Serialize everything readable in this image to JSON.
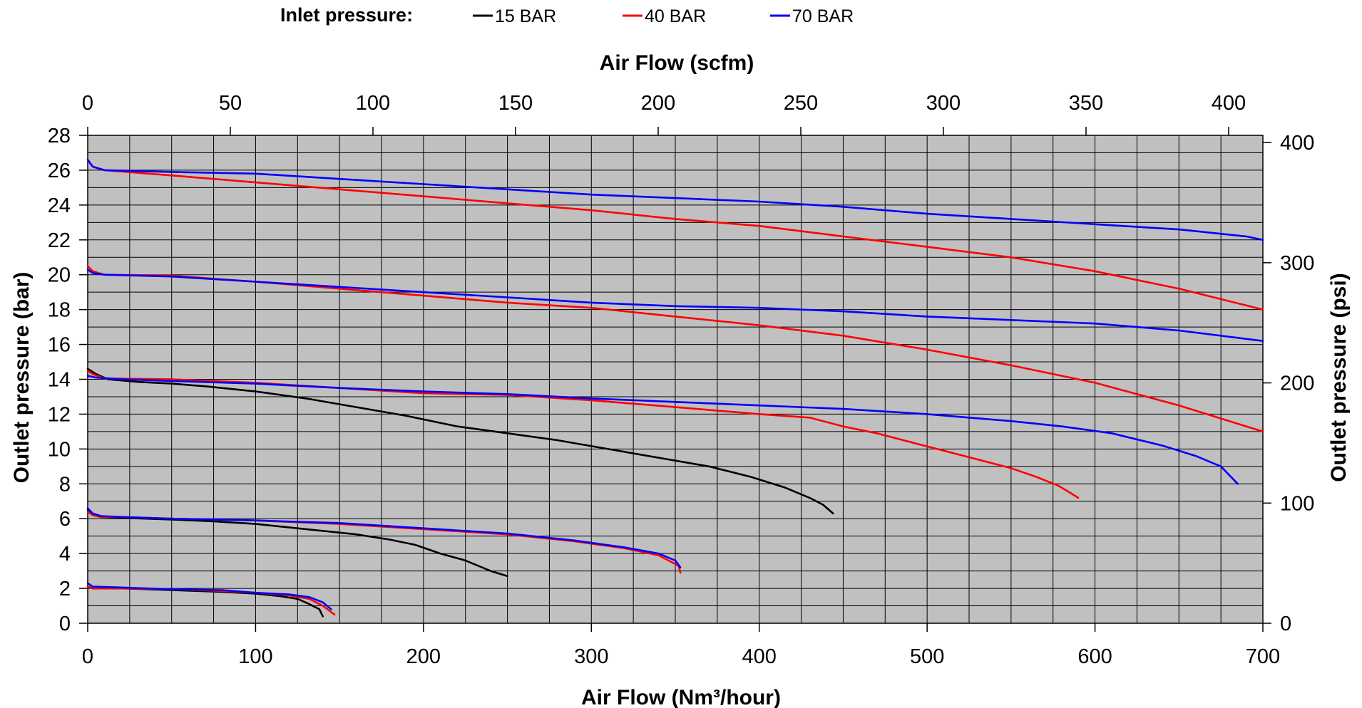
{
  "chart_data": {
    "type": "line",
    "legend": {
      "title": "Inlet pressure:",
      "placement": "top"
    },
    "x_bottom": {
      "label": "Air Flow (Nm³/hour)",
      "range": [
        0,
        700
      ],
      "ticks": [
        0,
        100,
        200,
        300,
        400,
        500,
        600,
        700
      ]
    },
    "x_top": {
      "label": "Air Flow (scfm)",
      "range": [
        0,
        412
      ],
      "ticks": [
        0,
        50,
        100,
        150,
        200,
        250,
        300,
        350,
        400
      ]
    },
    "y_left": {
      "label": "Outlet pressure (bar)",
      "range": [
        0,
        28
      ],
      "ticks": [
        0,
        2,
        4,
        6,
        8,
        10,
        12,
        14,
        16,
        18,
        20,
        22,
        24,
        26,
        28
      ]
    },
    "y_right": {
      "label": "Outlet pressure (psi)",
      "range": [
        0,
        406
      ],
      "ticks": [
        0,
        100,
        200,
        300,
        400
      ]
    },
    "grid": true,
    "plot_background": "#c0c0c0",
    "series": [
      {
        "name": "15 BAR",
        "color": "#000000",
        "curves": [
          [
            [
              0,
              2.1
            ],
            [
              3,
              2.0
            ],
            [
              20,
              2.0
            ],
            [
              50,
              1.9
            ],
            [
              80,
              1.8
            ],
            [
              100,
              1.7
            ],
            [
              115,
              1.55
            ],
            [
              125,
              1.4
            ],
            [
              132,
              1.1
            ],
            [
              138,
              0.8
            ],
            [
              140,
              0.4
            ]
          ],
          [
            [
              0,
              6.5
            ],
            [
              3,
              6.2
            ],
            [
              8,
              6.1
            ],
            [
              20,
              6.05
            ],
            [
              50,
              5.95
            ],
            [
              75,
              5.85
            ],
            [
              100,
              5.7
            ],
            [
              130,
              5.4
            ],
            [
              160,
              5.1
            ],
            [
              180,
              4.8
            ],
            [
              195,
              4.5
            ],
            [
              210,
              4.0
            ],
            [
              225,
              3.6
            ],
            [
              240,
              3.0
            ],
            [
              250,
              2.7
            ]
          ],
          [
            [
              0,
              14.6
            ],
            [
              5,
              14.3
            ],
            [
              12,
              14.0
            ],
            [
              30,
              13.85
            ],
            [
              50,
              13.75
            ],
            [
              70,
              13.6
            ],
            [
              100,
              13.3
            ],
            [
              130,
              12.9
            ],
            [
              160,
              12.4
            ],
            [
              190,
              11.9
            ],
            [
              220,
              11.3
            ],
            [
              250,
              10.9
            ],
            [
              280,
              10.5
            ],
            [
              310,
              10.0
            ],
            [
              340,
              9.5
            ],
            [
              370,
              9.0
            ],
            [
              395,
              8.4
            ],
            [
              415,
              7.8
            ],
            [
              430,
              7.2
            ],
            [
              438,
              6.8
            ],
            [
              444,
              6.3
            ]
          ]
        ]
      },
      {
        "name": "40 BAR",
        "color": "#ff0000",
        "curves": [
          [
            [
              0,
              2.1
            ],
            [
              3,
              2.0
            ],
            [
              20,
              2.0
            ],
            [
              50,
              1.95
            ],
            [
              80,
              1.85
            ],
            [
              100,
              1.75
            ],
            [
              120,
              1.6
            ],
            [
              132,
              1.4
            ],
            [
              140,
              1.0
            ],
            [
              147,
              0.5
            ]
          ],
          [
            [
              0,
              6.4
            ],
            [
              3,
              6.2
            ],
            [
              8,
              6.1
            ],
            [
              20,
              6.1
            ],
            [
              50,
              6.0
            ],
            [
              100,
              5.9
            ],
            [
              150,
              5.7
            ],
            [
              200,
              5.4
            ],
            [
              250,
              5.1
            ],
            [
              290,
              4.7
            ],
            [
              320,
              4.3
            ],
            [
              340,
              3.9
            ],
            [
              352,
              3.3
            ],
            [
              353,
              2.9
            ]
          ],
          [
            [
              0,
              14.5
            ],
            [
              3,
              14.3
            ],
            [
              10,
              14.05
            ],
            [
              50,
              14.0
            ],
            [
              100,
              13.8
            ],
            [
              150,
              13.5
            ],
            [
              200,
              13.2
            ],
            [
              250,
              13.1
            ],
            [
              300,
              12.8
            ],
            [
              350,
              12.4
            ],
            [
              400,
              12.0
            ],
            [
              430,
              11.8
            ],
            [
              450,
              11.3
            ],
            [
              470,
              10.9
            ],
            [
              490,
              10.4
            ],
            [
              510,
              9.9
            ],
            [
              530,
              9.4
            ],
            [
              550,
              8.9
            ],
            [
              565,
              8.4
            ],
            [
              578,
              7.9
            ],
            [
              585,
              7.5
            ],
            [
              590,
              7.2
            ]
          ],
          [
            [
              0,
              20.5
            ],
            [
              3,
              20.2
            ],
            [
              10,
              20.0
            ],
            [
              50,
              19.95
            ],
            [
              100,
              19.6
            ],
            [
              150,
              19.2
            ],
            [
              200,
              18.8
            ],
            [
              250,
              18.4
            ],
            [
              300,
              18.1
            ],
            [
              350,
              17.6
            ],
            [
              400,
              17.1
            ],
            [
              450,
              16.5
            ],
            [
              500,
              15.7
            ],
            [
              550,
              14.8
            ],
            [
              600,
              13.8
            ],
            [
              650,
              12.5
            ],
            [
              700,
              11.0
            ]
          ],
          [
            [
              0,
              26.6
            ],
            [
              3,
              26.2
            ],
            [
              10,
              26.0
            ],
            [
              50,
              25.7
            ],
            [
              100,
              25.3
            ],
            [
              150,
              24.9
            ],
            [
              200,
              24.5
            ],
            [
              250,
              24.1
            ],
            [
              300,
              23.7
            ],
            [
              350,
              23.2
            ],
            [
              400,
              22.8
            ],
            [
              450,
              22.2
            ],
            [
              500,
              21.6
            ],
            [
              550,
              21.0
            ],
            [
              600,
              20.2
            ],
            [
              650,
              19.2
            ],
            [
              700,
              18.0
            ]
          ]
        ]
      },
      {
        "name": "70 BAR",
        "color": "#0000ff",
        "curves": [
          [
            [
              0,
              2.3
            ],
            [
              3,
              2.1
            ],
            [
              20,
              2.05
            ],
            [
              50,
              1.95
            ],
            [
              80,
              1.9
            ],
            [
              100,
              1.75
            ],
            [
              120,
              1.65
            ],
            [
              132,
              1.5
            ],
            [
              140,
              1.2
            ],
            [
              145,
              0.8
            ]
          ],
          [
            [
              0,
              6.6
            ],
            [
              3,
              6.3
            ],
            [
              8,
              6.15
            ],
            [
              20,
              6.1
            ],
            [
              50,
              6.0
            ],
            [
              100,
              5.9
            ],
            [
              150,
              5.75
            ],
            [
              200,
              5.45
            ],
            [
              250,
              5.15
            ],
            [
              290,
              4.75
            ],
            [
              320,
              4.35
            ],
            [
              340,
              4.0
            ],
            [
              350,
              3.6
            ],
            [
              353,
              3.2
            ]
          ],
          [
            [
              0,
              14.2
            ],
            [
              5,
              14.1
            ],
            [
              20,
              14.0
            ],
            [
              50,
              13.9
            ],
            [
              100,
              13.75
            ],
            [
              150,
              13.5
            ],
            [
              200,
              13.3
            ],
            [
              250,
              13.15
            ],
            [
              300,
              12.9
            ],
            [
              350,
              12.7
            ],
            [
              400,
              12.5
            ],
            [
              450,
              12.3
            ],
            [
              500,
              12.0
            ],
            [
              550,
              11.6
            ],
            [
              580,
              11.3
            ],
            [
              610,
              10.9
            ],
            [
              640,
              10.2
            ],
            [
              660,
              9.6
            ],
            [
              675,
              9.0
            ],
            [
              685,
              8.0
            ]
          ],
          [
            [
              0,
              20.3
            ],
            [
              3,
              20.1
            ],
            [
              10,
              20.0
            ],
            [
              50,
              19.9
            ],
            [
              100,
              19.6
            ],
            [
              150,
              19.3
            ],
            [
              200,
              19.0
            ],
            [
              250,
              18.7
            ],
            [
              300,
              18.4
            ],
            [
              350,
              18.2
            ],
            [
              400,
              18.1
            ],
            [
              450,
              17.9
            ],
            [
              500,
              17.6
            ],
            [
              550,
              17.4
            ],
            [
              600,
              17.2
            ],
            [
              650,
              16.8
            ],
            [
              700,
              16.2
            ]
          ],
          [
            [
              0,
              26.6
            ],
            [
              3,
              26.2
            ],
            [
              10,
              26.0
            ],
            [
              50,
              25.9
            ],
            [
              100,
              25.8
            ],
            [
              150,
              25.5
            ],
            [
              200,
              25.2
            ],
            [
              250,
              24.9
            ],
            [
              300,
              24.6
            ],
            [
              350,
              24.4
            ],
            [
              400,
              24.2
            ],
            [
              450,
              23.9
            ],
            [
              500,
              23.5
            ],
            [
              550,
              23.2
            ],
            [
              600,
              22.9
            ],
            [
              650,
              22.6
            ],
            [
              690,
              22.2
            ],
            [
              700,
              22.0
            ]
          ]
        ]
      }
    ]
  }
}
